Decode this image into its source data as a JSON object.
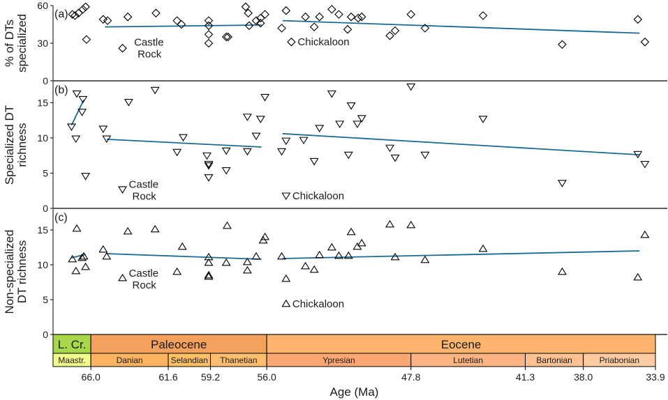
{
  "chart_data": [
    {
      "type": "scatter",
      "panel_label": "(a)",
      "ylabel": [
        "% of DTs",
        "specialized"
      ],
      "ylim": [
        0,
        60
      ],
      "yticks": [
        0,
        30,
        60
      ],
      "marker": "diamond",
      "annotations": [
        {
          "text": [
            "Castle",
            "Rock"
          ],
          "x": 63.9,
          "y": 27
        },
        {
          "text": [
            "Chickaloon"
          ],
          "x": 54.6,
          "y": 31
        }
      ],
      "points": [
        {
          "x": 67.05,
          "y": 53
        },
        {
          "x": 66.9,
          "y": 52
        },
        {
          "x": 66.7,
          "y": 54
        },
        {
          "x": 66.45,
          "y": 57
        },
        {
          "x": 66.3,
          "y": 59
        },
        {
          "x": 66.25,
          "y": 33
        },
        {
          "x": 65.3,
          "y": 49
        },
        {
          "x": 65.05,
          "y": 48
        },
        {
          "x": 64.2,
          "y": 26
        },
        {
          "x": 63.9,
          "y": 51
        },
        {
          "x": 62.3,
          "y": 54
        },
        {
          "x": 61.1,
          "y": 48
        },
        {
          "x": 60.85,
          "y": 45
        },
        {
          "x": 59.3,
          "y": 48
        },
        {
          "x": 59.3,
          "y": 44
        },
        {
          "x": 59.3,
          "y": 37
        },
        {
          "x": 59.3,
          "y": 30
        },
        {
          "x": 58.3,
          "y": 35
        },
        {
          "x": 58.2,
          "y": 35
        },
        {
          "x": 57.2,
          "y": 59
        },
        {
          "x": 57.05,
          "y": 54
        },
        {
          "x": 57.0,
          "y": 44
        },
        {
          "x": 56.6,
          "y": 48
        },
        {
          "x": 56.35,
          "y": 50
        },
        {
          "x": 56.1,
          "y": 53
        },
        {
          "x": 56.35,
          "y": 46
        },
        {
          "x": 55.15,
          "y": 42
        },
        {
          "x": 54.9,
          "y": 56
        },
        {
          "x": 54.6,
          "y": 31
        },
        {
          "x": 53.8,
          "y": 51
        },
        {
          "x": 53.3,
          "y": 43
        },
        {
          "x": 53.0,
          "y": 51
        },
        {
          "x": 52.3,
          "y": 57
        },
        {
          "x": 51.9,
          "y": 53
        },
        {
          "x": 51.4,
          "y": 41
        },
        {
          "x": 51.2,
          "y": 51
        },
        {
          "x": 50.8,
          "y": 50
        },
        {
          "x": 50.6,
          "y": 51
        },
        {
          "x": 49.0,
          "y": 36
        },
        {
          "x": 48.7,
          "y": 40
        },
        {
          "x": 47.8,
          "y": 53
        },
        {
          "x": 47.0,
          "y": 42
        },
        {
          "x": 43.7,
          "y": 52
        },
        {
          "x": 39.2,
          "y": 29
        },
        {
          "x": 34.9,
          "y": 49
        },
        {
          "x": 34.5,
          "y": 31
        }
      ],
      "trends": [
        {
          "x": [
            65.2,
            56.3
          ],
          "y": [
            43,
            44.5
          ]
        },
        {
          "x": [
            55.1,
            34.8
          ],
          "y": [
            48,
            38
          ]
        }
      ]
    },
    {
      "type": "scatter",
      "panel_label": "(b)",
      "ylabel": [
        "Specialized DT",
        "richness"
      ],
      "ylim": [
        0,
        18
      ],
      "yticks": [
        0,
        5,
        10,
        15
      ],
      "marker": "triangle-down",
      "annotations": [
        {
          "text": [
            "Castle",
            "Rock"
          ],
          "x": 64.2,
          "y": 2.7
        },
        {
          "text": [
            "Chickaloon"
          ],
          "x": 54.9,
          "y": 1.8
        }
      ],
      "points": [
        {
          "x": 67.1,
          "y": 11.6
        },
        {
          "x": 66.8,
          "y": 16.3
        },
        {
          "x": 66.85,
          "y": 9.9
        },
        {
          "x": 66.5,
          "y": 13.7
        },
        {
          "x": 66.45,
          "y": 15.5
        },
        {
          "x": 66.3,
          "y": 4.6
        },
        {
          "x": 65.3,
          "y": 11.3
        },
        {
          "x": 65.1,
          "y": 9.9
        },
        {
          "x": 64.2,
          "y": 2.7
        },
        {
          "x": 63.85,
          "y": 15.1
        },
        {
          "x": 62.35,
          "y": 16.8
        },
        {
          "x": 61.1,
          "y": 8.0
        },
        {
          "x": 60.75,
          "y": 10.1
        },
        {
          "x": 59.4,
          "y": 7.5
        },
        {
          "x": 59.3,
          "y": 6.3
        },
        {
          "x": 59.3,
          "y": 6.1
        },
        {
          "x": 59.3,
          "y": 4.4
        },
        {
          "x": 58.3,
          "y": 8.2
        },
        {
          "x": 58.3,
          "y": 5.4
        },
        {
          "x": 57.1,
          "y": 13.0
        },
        {
          "x": 57.1,
          "y": 8.1
        },
        {
          "x": 56.6,
          "y": 10.3
        },
        {
          "x": 56.35,
          "y": 12.7
        },
        {
          "x": 56.1,
          "y": 15.8
        },
        {
          "x": 55.15,
          "y": 8.1
        },
        {
          "x": 54.9,
          "y": 9.6
        },
        {
          "x": 54.9,
          "y": 1.8
        },
        {
          "x": 53.9,
          "y": 9.7
        },
        {
          "x": 53.3,
          "y": 6.7
        },
        {
          "x": 53.0,
          "y": 11.4
        },
        {
          "x": 52.3,
          "y": 16.3
        },
        {
          "x": 51.85,
          "y": 12.0
        },
        {
          "x": 51.35,
          "y": 7.6
        },
        {
          "x": 51.2,
          "y": 14.6
        },
        {
          "x": 50.85,
          "y": 12.0
        },
        {
          "x": 50.6,
          "y": 12.8
        },
        {
          "x": 49.0,
          "y": 8.6
        },
        {
          "x": 48.7,
          "y": 7.2
        },
        {
          "x": 47.8,
          "y": 17.3
        },
        {
          "x": 47.0,
          "y": 7.6
        },
        {
          "x": 43.7,
          "y": 12.7
        },
        {
          "x": 39.2,
          "y": 3.6
        },
        {
          "x": 34.9,
          "y": 7.7
        },
        {
          "x": 34.5,
          "y": 6.3
        }
      ],
      "trends": [
        {
          "x": [
            67.1,
            66.4
          ],
          "y": [
            11.8,
            15.4
          ]
        },
        {
          "x": [
            65.1,
            56.3
          ],
          "y": [
            9.8,
            8.7
          ]
        },
        {
          "x": [
            55.1,
            34.8
          ],
          "y": [
            10.6,
            7.6
          ]
        }
      ]
    },
    {
      "type": "scatter",
      "panel_label": "(c)",
      "ylabel": [
        "Non-specialized",
        "DT richness"
      ],
      "ylim": [
        0,
        18
      ],
      "yticks": [
        0,
        5,
        10,
        15
      ],
      "marker": "triangle-up",
      "annotations": [
        {
          "text": [
            "Castle",
            "Rock"
          ],
          "x": 64.2,
          "y": 8.1
        },
        {
          "text": [
            "Chickaloon"
          ],
          "x": 54.9,
          "y": 4.4
        }
      ],
      "points": [
        {
          "x": 67.05,
          "y": 10.8
        },
        {
          "x": 66.85,
          "y": 9.1
        },
        {
          "x": 66.8,
          "y": 15.2
        },
        {
          "x": 66.5,
          "y": 11.0
        },
        {
          "x": 66.4,
          "y": 11.2
        },
        {
          "x": 66.3,
          "y": 9.7
        },
        {
          "x": 65.3,
          "y": 12.2
        },
        {
          "x": 65.1,
          "y": 11.2
        },
        {
          "x": 64.2,
          "y": 8.1
        },
        {
          "x": 63.9,
          "y": 14.8
        },
        {
          "x": 62.35,
          "y": 15.1
        },
        {
          "x": 61.1,
          "y": 9.0
        },
        {
          "x": 60.8,
          "y": 12.6
        },
        {
          "x": 59.3,
          "y": 11.1
        },
        {
          "x": 59.3,
          "y": 10.3
        },
        {
          "x": 59.3,
          "y": 8.5
        },
        {
          "x": 59.3,
          "y": 8.3
        },
        {
          "x": 58.25,
          "y": 15.6
        },
        {
          "x": 58.3,
          "y": 10.3
        },
        {
          "x": 57.1,
          "y": 10.4
        },
        {
          "x": 57.1,
          "y": 9.2
        },
        {
          "x": 56.6,
          "y": 11.2
        },
        {
          "x": 56.2,
          "y": 13.5
        },
        {
          "x": 56.1,
          "y": 14.0
        },
        {
          "x": 55.15,
          "y": 11.2
        },
        {
          "x": 54.9,
          "y": 8.0
        },
        {
          "x": 54.9,
          "y": 4.4
        },
        {
          "x": 53.8,
          "y": 9.8
        },
        {
          "x": 53.3,
          "y": 9.3
        },
        {
          "x": 53.0,
          "y": 11.4
        },
        {
          "x": 52.3,
          "y": 12.5
        },
        {
          "x": 51.9,
          "y": 11.3
        },
        {
          "x": 51.35,
          "y": 11.3
        },
        {
          "x": 51.2,
          "y": 14.7
        },
        {
          "x": 50.85,
          "y": 12.6
        },
        {
          "x": 50.6,
          "y": 13.1
        },
        {
          "x": 49.0,
          "y": 15.8
        },
        {
          "x": 48.7,
          "y": 11.1
        },
        {
          "x": 47.8,
          "y": 15.7
        },
        {
          "x": 47.0,
          "y": 10.7
        },
        {
          "x": 43.7,
          "y": 12.3
        },
        {
          "x": 39.2,
          "y": 9.0
        },
        {
          "x": 34.9,
          "y": 8.2
        },
        {
          "x": 34.5,
          "y": 14.3
        }
      ],
      "trends": [
        {
          "x": [
            67.1,
            66.3
          ],
          "y": [
            11.0,
            11.5
          ]
        },
        {
          "x": [
            65.1,
            56.3
          ],
          "y": [
            11.6,
            10.8
          ]
        },
        {
          "x": [
            55.1,
            34.8
          ],
          "y": [
            10.9,
            12.0
          ]
        }
      ]
    }
  ],
  "xaxis": {
    "label": "Age (Ma)",
    "xlim": [
      68.15,
      33.9
    ],
    "ticks": [
      {
        "value": 66.0,
        "label": "66.0"
      },
      {
        "value": 61.6,
        "label": "61.6"
      },
      {
        "value": 59.2,
        "label": "59.2"
      },
      {
        "value": 56.0,
        "label": "56.0"
      },
      {
        "value": 47.8,
        "label": "47.8"
      },
      {
        "value": 41.3,
        "label": "41.3"
      },
      {
        "value": 38.0,
        "label": "38.0"
      },
      {
        "value": 33.9,
        "label": "33.9"
      }
    ]
  },
  "timescale": {
    "epochs": [
      {
        "label": "L. Cr.",
        "start": 68.15,
        "end": 66.0,
        "color": "#A6D84A"
      },
      {
        "label": "Paleocene",
        "start": 66.0,
        "end": 56.0,
        "color": "#F5A15E"
      },
      {
        "label": "Eocene",
        "start": 56.0,
        "end": 33.9,
        "color": "#FDB46C"
      }
    ],
    "stages": [
      {
        "label": "Maastr.",
        "start": 68.15,
        "end": 66.0,
        "color": "#F2FA8C"
      },
      {
        "label": "Danian",
        "start": 66.0,
        "end": 61.6,
        "color": "#FDB462"
      },
      {
        "label": "Selandian",
        "start": 61.6,
        "end": 59.2,
        "color": "#FEBF65"
      },
      {
        "label": "Thanetian",
        "start": 59.2,
        "end": 56.0,
        "color": "#FDBF6F"
      },
      {
        "label": "Ypresian",
        "start": 56.0,
        "end": 47.8,
        "color": "#FCA773"
      },
      {
        "label": "Lutetian",
        "start": 47.8,
        "end": 41.3,
        "color": "#FCB482"
      },
      {
        "label": "Bartonian",
        "start": 41.3,
        "end": 38.0,
        "color": "#FDC091"
      },
      {
        "label": "Priabonian",
        "start": 38.0,
        "end": 33.9,
        "color": "#FDCDA1"
      }
    ]
  },
  "colors": {
    "trend": "#1A6A96",
    "marker_stroke": "#000000",
    "axis": "#000000"
  }
}
